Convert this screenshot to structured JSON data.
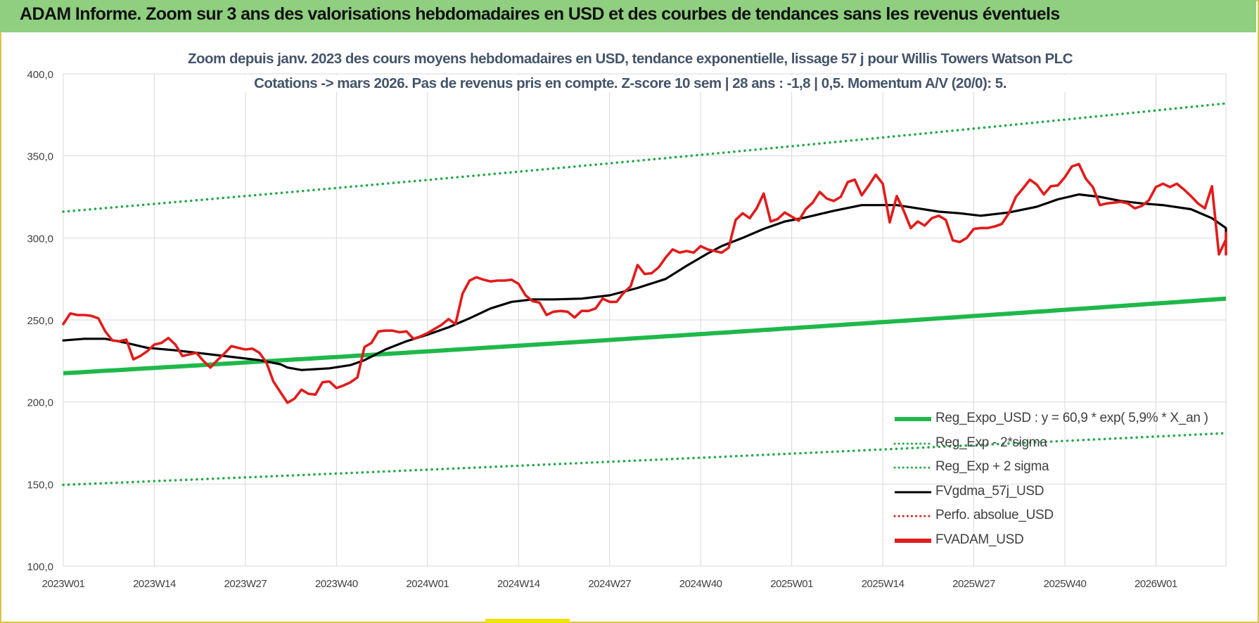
{
  "header": {
    "title": "ADAM Informe. Zoom sur 3 ans des valorisations hebdomadaires en USD et des courbes de tendances sans les revenus éventuels"
  },
  "colors": {
    "header_bg": "#8fcf7f",
    "reg_expo": "#1fb84a",
    "sigma": "#23a84a",
    "fvgdma": "#000000",
    "perfo": "#d42020",
    "fvadam": "#e21b1b",
    "grid": "#d9d9d9",
    "axis_text": "#404040"
  },
  "chart_data": {
    "type": "line",
    "title": "Zoom depuis janv. 2023 des cours moyens hebdomadaires en USD, tendance exponentielle, lissage 57 j pour Willis Towers Watson PLC",
    "subtitle": "Cotations -> mars 2026. Pas de revenus pris en compte. Z-score 10 sem | 28 ans : -1,8 | 0,5. Momentum A/V (20/0): 5.",
    "ylim": [
      100,
      400
    ],
    "yticks": [
      "400,0",
      "350,0",
      "300,0",
      "250,0",
      "200,0",
      "150,0",
      "100,0"
    ],
    "ytick_values": [
      400,
      350,
      300,
      250,
      200,
      150,
      100
    ],
    "x_tick_labels": [
      "2023W01",
      "2023W14",
      "2023W27",
      "2023W40",
      "2024W01",
      "2024W14",
      "2024W27",
      "2024W40",
      "2025W01",
      "2025W14",
      "2025W27",
      "2025W40",
      "2026W01"
    ],
    "x_tick_weeks": [
      0,
      13,
      26,
      39,
      52,
      65,
      78,
      91,
      104,
      117,
      130,
      143,
      156
    ],
    "x_last_week": 166,
    "grid": "on",
    "legend": "bottom-right",
    "legend_entries": [
      {
        "label": "Reg_Expo_USD : y = 60,9 * exp( 5,9% *  X_an )",
        "style": "solid-thick",
        "color_key": "reg_expo"
      },
      {
        "label": "Reg_Exp - 2*sigma",
        "style": "dotted",
        "color_key": "sigma"
      },
      {
        "label": "Reg_Exp + 2 sigma",
        "style": "dotted",
        "color_key": "sigma"
      },
      {
        "label": "FVgdma_57j_USD",
        "style": "solid",
        "color_key": "fvgdma"
      },
      {
        "label": "Perfo. absolue_USD",
        "style": "dotted",
        "color_key": "perfo"
      },
      {
        "label": "FVADAM_USD",
        "style": "solid-thick",
        "color_key": "fvadam"
      }
    ],
    "series": [
      {
        "name": "Reg_Expo_USD : y = 60,9 * exp( 5,9% *  X_an )",
        "style": "solid-thick",
        "points": [
          [
            0,
            217.5
          ],
          [
            166,
            263
          ]
        ]
      },
      {
        "name": "Reg_Exp - 2*sigma",
        "style": "dotted",
        "points": [
          [
            0,
            149.5
          ],
          [
            166,
            181
          ]
        ]
      },
      {
        "name": "Reg_Exp + 2 sigma",
        "style": "dotted",
        "points": [
          [
            0,
            316
          ],
          [
            166,
            382
          ]
        ]
      },
      {
        "name": "FVgdma_57j_USD",
        "style": "solid",
        "points": [
          [
            0,
            237.5
          ],
          [
            3,
            238.5
          ],
          [
            6,
            238.5
          ],
          [
            9,
            236
          ],
          [
            12,
            233
          ],
          [
            16,
            231.5
          ],
          [
            20,
            229.5
          ],
          [
            24,
            227.5
          ],
          [
            28,
            225.5
          ],
          [
            31,
            223
          ],
          [
            32,
            221
          ],
          [
            34,
            219.5
          ],
          [
            36,
            220
          ],
          [
            38,
            220.5
          ],
          [
            41,
            222.5
          ],
          [
            43,
            225.5
          ],
          [
            46,
            232
          ],
          [
            49,
            237
          ],
          [
            52,
            241
          ],
          [
            55,
            245.5
          ],
          [
            58,
            251
          ],
          [
            61,
            257
          ],
          [
            64,
            261
          ],
          [
            67,
            262.5
          ],
          [
            70,
            262.5
          ],
          [
            74,
            263
          ],
          [
            78,
            265
          ],
          [
            82,
            269.5
          ],
          [
            86,
            275
          ],
          [
            89,
            283
          ],
          [
            92,
            290.5
          ],
          [
            94,
            295
          ],
          [
            97,
            300
          ],
          [
            100,
            305.5
          ],
          [
            103,
            310
          ],
          [
            106,
            312.5
          ],
          [
            110,
            316.5
          ],
          [
            114,
            320
          ],
          [
            119,
            320
          ],
          [
            122,
            318
          ],
          [
            125,
            316
          ],
          [
            128,
            315
          ],
          [
            131,
            313.5
          ],
          [
            135,
            315.5
          ],
          [
            139,
            319
          ],
          [
            142,
            323.5
          ],
          [
            145,
            326.5
          ],
          [
            148,
            325
          ],
          [
            151,
            322.5
          ],
          [
            154,
            321
          ],
          [
            157,
            320
          ],
          [
            161,
            317.5
          ],
          [
            164,
            312
          ],
          [
            166,
            306
          ],
          [
            168,
            302
          ],
          [
            171,
            299
          ]
        ]
      },
      {
        "name": "FVADAM_USD",
        "style": "solid-thick",
        "points": [
          [
            0,
            247.5
          ],
          [
            1,
            254
          ],
          [
            2,
            253
          ],
          [
            3,
            253
          ],
          [
            4,
            252.5
          ],
          [
            5,
            251
          ],
          [
            6,
            243
          ],
          [
            7,
            237.5
          ],
          [
            8,
            237
          ],
          [
            9,
            238
          ],
          [
            10,
            226
          ],
          [
            11,
            228
          ],
          [
            12,
            231
          ],
          [
            13,
            235
          ],
          [
            14,
            236
          ],
          [
            15,
            239
          ],
          [
            16,
            235
          ],
          [
            17,
            228
          ],
          [
            18,
            229
          ],
          [
            19,
            230
          ],
          [
            20,
            225
          ],
          [
            21,
            221
          ],
          [
            22,
            225.5
          ],
          [
            23,
            229.5
          ],
          [
            24,
            234
          ],
          [
            25,
            233
          ],
          [
            26,
            232
          ],
          [
            27,
            232.5
          ],
          [
            28,
            230
          ],
          [
            29,
            224
          ],
          [
            30,
            212.5
          ],
          [
            31,
            206
          ],
          [
            32,
            199.5
          ],
          [
            33,
            202
          ],
          [
            34,
            207.5
          ],
          [
            35,
            205
          ],
          [
            36,
            204.5
          ],
          [
            37,
            212
          ],
          [
            38,
            212.5
          ],
          [
            39,
            208.5
          ],
          [
            40,
            210
          ],
          [
            41,
            212
          ],
          [
            42,
            215
          ],
          [
            43,
            233.5
          ],
          [
            44,
            236
          ],
          [
            45,
            243
          ],
          [
            46,
            243.5
          ],
          [
            47,
            243.5
          ],
          [
            48,
            242.5
          ],
          [
            49,
            243
          ],
          [
            50,
            238.5
          ],
          [
            51,
            240
          ],
          [
            52,
            242
          ],
          [
            53,
            244.5
          ],
          [
            54,
            247
          ],
          [
            55,
            250.5
          ],
          [
            56,
            247.5
          ],
          [
            57,
            266
          ],
          [
            58,
            274
          ],
          [
            59,
            276
          ],
          [
            60,
            274.5
          ],
          [
            61,
            273.5
          ],
          [
            62,
            274
          ],
          [
            63,
            274
          ],
          [
            64,
            274.5
          ],
          [
            65,
            272
          ],
          [
            66,
            265
          ],
          [
            67,
            261.5
          ],
          [
            68,
            260.5
          ],
          [
            69,
            253
          ],
          [
            70,
            255
          ],
          [
            71,
            255.5
          ],
          [
            72,
            255
          ],
          [
            73,
            251.5
          ],
          [
            74,
            255.5
          ],
          [
            75,
            255.5
          ],
          [
            76,
            257
          ],
          [
            77,
            263
          ],
          [
            78,
            261
          ],
          [
            79,
            261
          ],
          [
            80,
            266.5
          ],
          [
            81,
            270.5
          ],
          [
            82,
            283.5
          ],
          [
            83,
            278
          ],
          [
            84,
            278.5
          ],
          [
            85,
            282
          ],
          [
            86,
            288
          ],
          [
            87,
            293
          ],
          [
            88,
            291
          ],
          [
            89,
            292
          ],
          [
            90,
            291
          ],
          [
            91,
            295
          ],
          [
            92,
            293
          ],
          [
            93,
            292
          ],
          [
            94,
            291
          ],
          [
            95,
            294
          ],
          [
            96,
            311
          ],
          [
            97,
            315
          ],
          [
            98,
            312
          ],
          [
            99,
            318
          ],
          [
            100,
            327
          ],
          [
            101,
            310
          ],
          [
            102,
            311.5
          ],
          [
            103,
            315.5
          ],
          [
            104,
            313
          ],
          [
            105,
            310.5
          ],
          [
            106,
            317.5
          ],
          [
            107,
            321.5
          ],
          [
            108,
            328
          ],
          [
            109,
            324
          ],
          [
            110,
            322.5
          ],
          [
            111,
            325
          ],
          [
            112,
            334
          ],
          [
            113,
            335.5
          ],
          [
            114,
            326
          ],
          [
            115,
            332
          ],
          [
            116,
            338.5
          ],
          [
            117,
            333
          ],
          [
            118,
            309.5
          ],
          [
            119,
            325.5
          ],
          [
            120,
            316.5
          ],
          [
            121,
            306
          ],
          [
            122,
            310
          ],
          [
            123,
            307.5
          ],
          [
            124,
            312
          ],
          [
            125,
            313.5
          ],
          [
            126,
            311
          ],
          [
            127,
            298.5
          ],
          [
            128,
            297.5
          ],
          [
            129,
            300
          ],
          [
            130,
            305.5
          ],
          [
            131,
            306
          ],
          [
            132,
            306
          ],
          [
            133,
            307
          ],
          [
            134,
            308.5
          ],
          [
            135,
            315
          ],
          [
            136,
            325
          ],
          [
            137,
            330
          ],
          [
            138,
            335.5
          ],
          [
            139,
            332.5
          ],
          [
            140,
            326.5
          ],
          [
            141,
            331.5
          ],
          [
            142,
            332
          ],
          [
            143,
            337
          ],
          [
            144,
            343.5
          ],
          [
            145,
            345
          ],
          [
            146,
            336
          ],
          [
            147,
            331
          ],
          [
            148,
            320
          ],
          [
            149,
            321
          ],
          [
            150,
            321.5
          ],
          [
            151,
            322
          ],
          [
            152,
            321
          ],
          [
            153,
            318
          ],
          [
            154,
            319.5
          ],
          [
            155,
            323
          ],
          [
            156,
            331
          ],
          [
            157,
            333
          ],
          [
            158,
            331
          ],
          [
            159,
            333
          ],
          [
            160,
            329.5
          ],
          [
            161,
            325.5
          ],
          [
            162,
            321
          ],
          [
            163,
            318
          ],
          [
            164,
            331.5
          ],
          [
            165,
            290
          ],
          [
            166,
            299
          ],
          [
            167,
            299
          ],
          [
            168,
            299.5
          ],
          [
            169,
            303
          ],
          [
            170,
            291.5
          ],
          [
            171,
            290
          ],
          [
            172,
            291
          ]
        ]
      }
    ]
  }
}
